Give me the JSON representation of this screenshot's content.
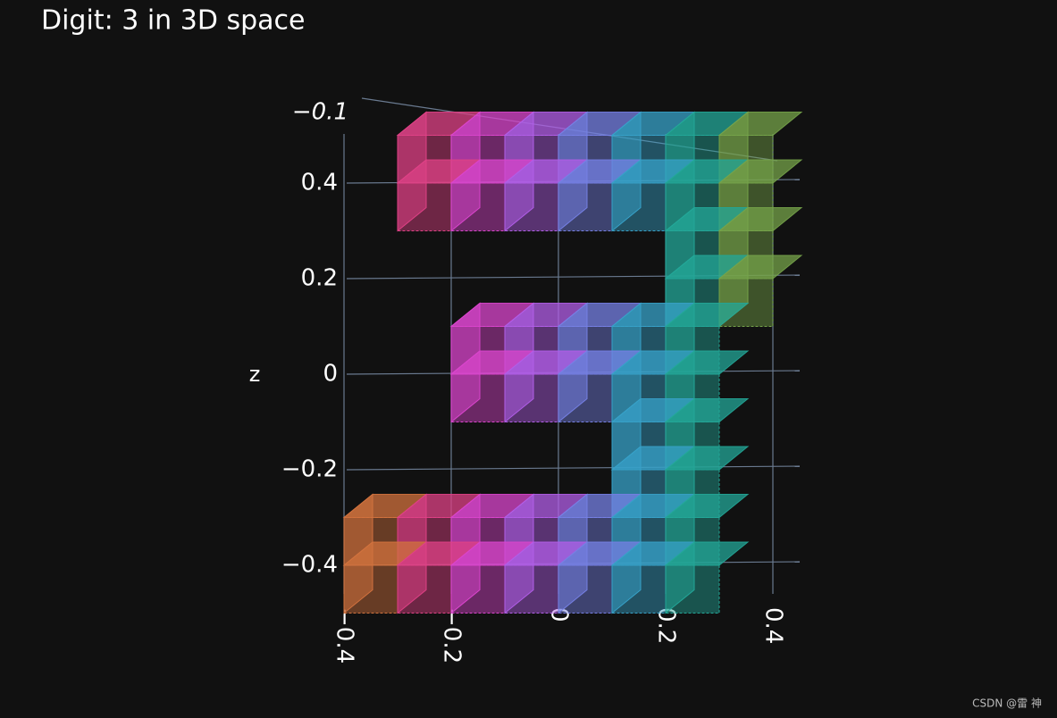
{
  "chart_data": {
    "type": "scatter3d",
    "title": "Digit: 3 in 3D space",
    "zlabel": "z",
    "x": [
      -0.25,
      -0.15,
      -0.05,
      0.05,
      0.15,
      0.25,
      0.35,
      -0.25,
      -0.15,
      -0.05,
      0.05,
      0.15,
      0.25,
      0.35,
      0.25,
      0.35,
      0.25,
      0.35,
      -0.15,
      -0.05,
      0.05,
      0.15,
      0.25,
      -0.15,
      -0.05,
      0.05,
      0.15,
      0.25,
      0.15,
      0.25,
      0.15,
      0.25,
      -0.35,
      -0.25,
      -0.15,
      -0.05,
      0.05,
      0.15,
      0.25,
      -0.35,
      -0.25,
      -0.15,
      -0.05,
      0.05,
      0.15,
      0.25
    ],
    "z": [
      0.45,
      0.45,
      0.45,
      0.45,
      0.45,
      0.45,
      0.45,
      0.35,
      0.35,
      0.35,
      0.35,
      0.35,
      0.35,
      0.35,
      0.25,
      0.25,
      0.15,
      0.15,
      0.05,
      0.05,
      0.05,
      0.05,
      0.05,
      -0.05,
      -0.05,
      -0.05,
      -0.05,
      -0.05,
      -0.15,
      -0.15,
      -0.25,
      -0.25,
      -0.35,
      -0.35,
      -0.35,
      -0.35,
      -0.35,
      -0.35,
      -0.35,
      -0.45,
      -0.45,
      -0.45,
      -0.45,
      -0.45,
      -0.45,
      -0.45
    ],
    "colorscale": [
      "#c8901a",
      "#e0407a",
      "#d846d8",
      "#9a6cf0",
      "#3aa0d0",
      "#20a890",
      "#a8a020"
    ],
    "xlim": [
      -0.4,
      0.4
    ],
    "xticks": [
      {
        "value": -0.4,
        "label": "−0.4"
      },
      {
        "value": -0.2,
        "label": "−0.2"
      },
      0,
      0.2,
      0.4
    ],
    "zlim": [
      -0.5,
      0.5
    ],
    "zticks": [
      {
        "value": -0.4,
        "label": "−0.4"
      },
      {
        "value": -0.2,
        "label": "−0.2"
      },
      0,
      0.2,
      0.4
    ],
    "yticks": [
      {
        "value": -0.1,
        "label": "−0.1"
      }
    ],
    "grid": true,
    "watermark": "CSDN @雷 神"
  }
}
